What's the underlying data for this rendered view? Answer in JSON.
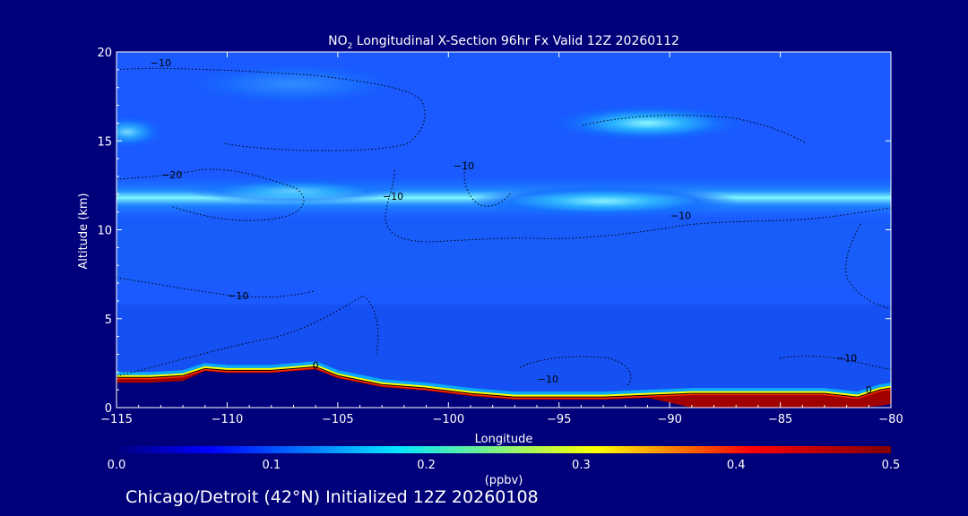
{
  "title_prefix": "NO",
  "title_sub": "2",
  "title_rest": " Longitudinal X-Section 96hr  Fx Valid 12Z 20260112",
  "footer": "Chicago/Detroit (42°N) Initialized 12Z 20260108",
  "chart_data": {
    "type": "heatmap",
    "xlabel": "Longitude",
    "ylabel": "Altitude (km)",
    "xlim": [
      -115,
      -80
    ],
    "ylim": [
      0,
      20
    ],
    "x_ticks": [
      -115,
      -110,
      -105,
      -100,
      -95,
      -90,
      -85,
      -80
    ],
    "x_tick_labels": [
      "−115",
      "−110",
      "−105",
      "−100",
      "−95",
      "−90",
      "−85",
      "−80"
    ],
    "y_ticks": [
      0,
      5,
      10,
      15,
      20
    ],
    "y_tick_labels": [
      "0",
      "5",
      "10",
      "15",
      "20"
    ],
    "colorbar": {
      "label": "(ppbv)",
      "range": [
        0.0,
        0.5
      ],
      "ticks": [
        0.0,
        0.1,
        0.2,
        0.3,
        0.4,
        0.5
      ],
      "tick_labels": [
        "0.0",
        "0.1",
        "0.2",
        "0.3",
        "0.4",
        "0.5"
      ],
      "colors": [
        "#000080",
        "#0000ff",
        "#00e5ff",
        "#ffff00",
        "#ff0000",
        "#800000"
      ]
    },
    "surface_boundary": {
      "lon": [
        -115,
        -113.5,
        -112,
        -111,
        -110,
        -108,
        -106,
        -105,
        -103,
        -101,
        -99,
        -97,
        -95,
        -93,
        -91,
        -89,
        -87,
        -85,
        -83,
        -81.5,
        -80.5,
        -80
      ],
      "alt": [
        1.7,
        1.7,
        1.8,
        2.2,
        2.1,
        2.1,
        2.3,
        1.8,
        1.3,
        1.1,
        0.8,
        0.6,
        0.6,
        0.6,
        0.7,
        0.8,
        0.8,
        0.8,
        0.8,
        0.6,
        1.0,
        1.1
      ]
    },
    "high_no2_bands": [
      {
        "lon": [
          -115,
          -80
        ],
        "alt_center": 11.8,
        "peak_ppbv": 0.18
      },
      {
        "lon": [
          -111,
          -103
        ],
        "alt_center": 18.2,
        "peak_ppbv": 0.12
      },
      {
        "lon": [
          -95,
          -87
        ],
        "alt_center": 16.0,
        "peak_ppbv": 0.16
      },
      {
        "lon": [
          -115,
          -113
        ],
        "alt_center": 15.5,
        "peak_ppbv": 0.14
      }
    ],
    "contour_labels": [
      {
        "text": "−10",
        "lon": -113,
        "alt": 19.2
      },
      {
        "text": "−20",
        "lon": -112.5,
        "alt": 12.9
      },
      {
        "text": "−10",
        "lon": -102.5,
        "alt": 11.7
      },
      {
        "text": "−10",
        "lon": -99.3,
        "alt": 13.4
      },
      {
        "text": "−10",
        "lon": -89.5,
        "alt": 10.6
      },
      {
        "text": "−10",
        "lon": -109.5,
        "alt": 6.1
      },
      {
        "text": "−10",
        "lon": -95.5,
        "alt": 1.4
      },
      {
        "text": "−10",
        "lon": -82,
        "alt": 2.6
      },
      {
        "text": "0",
        "lon": -106,
        "alt": 2.2
      },
      {
        "text": "0",
        "lon": -81,
        "alt": 0.8
      }
    ]
  }
}
